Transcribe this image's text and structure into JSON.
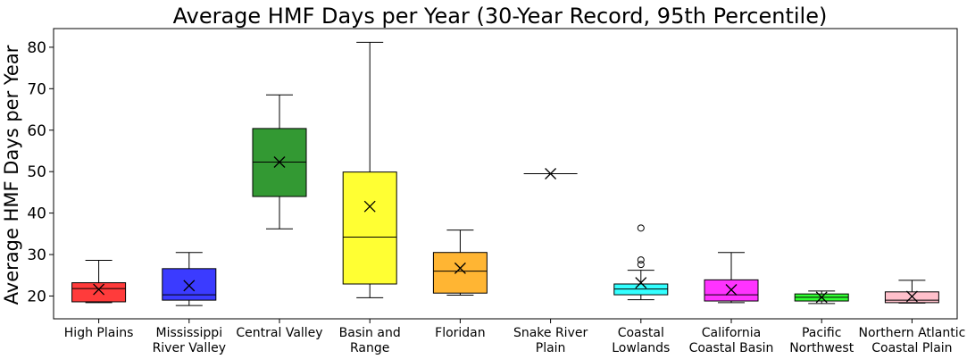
{
  "chart_data": {
    "type": "box",
    "title": "Average HMF Days per Year (30-Year Record, 95th Percentile)",
    "xlabel": "",
    "ylabel": "Average HMF Days per Year",
    "ylim": [
      14.5,
      84.5
    ],
    "yticks": [
      20,
      30,
      40,
      50,
      60,
      70,
      80
    ],
    "grid": false,
    "mean_marker": "x",
    "categories": [
      [
        "High Plains"
      ],
      [
        "Mississippi",
        "River Valley"
      ],
      [
        "Central Valley"
      ],
      [
        "Basin and",
        "Range"
      ],
      [
        "Floridan"
      ],
      [
        "Snake River",
        "Plain"
      ],
      [
        "Coastal",
        "Lowlands"
      ],
      [
        "California",
        "Coastal Basin"
      ],
      [
        "Pacific",
        "Northwest"
      ],
      [
        "Northern Atlantic",
        "Coastal Plain"
      ]
    ],
    "boxes": [
      {
        "color": "#ff3b3b",
        "whislo": 18.4,
        "q1": 18.6,
        "med": 21.8,
        "q3": 23.2,
        "whishi": 28.6,
        "mean": 21.6,
        "fliers": []
      },
      {
        "color": "#3b3bff",
        "whislo": 17.7,
        "q1": 19.0,
        "med": 20.3,
        "q3": 26.6,
        "whishi": 30.5,
        "mean": 22.5,
        "fliers": []
      },
      {
        "color": "#339933",
        "whislo": 36.2,
        "q1": 44.0,
        "med": 52.3,
        "q3": 60.4,
        "whishi": 68.5,
        "mean": 52.3,
        "fliers": []
      },
      {
        "color": "#ffff33",
        "whislo": 19.6,
        "q1": 22.9,
        "med": 34.2,
        "q3": 49.9,
        "whishi": 81.2,
        "mean": 41.6,
        "fliers": []
      },
      {
        "color": "#ffb533",
        "whislo": 20.2,
        "q1": 20.7,
        "med": 26.0,
        "q3": 30.5,
        "whishi": 35.9,
        "mean": 26.7,
        "fliers": []
      },
      {
        "color": "#888888",
        "whislo": 49.5,
        "q1": 49.5,
        "med": 49.5,
        "q3": 49.5,
        "whishi": 49.5,
        "mean": 49.5,
        "fliers": []
      },
      {
        "color": "#33ffff",
        "whislo": 19.1,
        "q1": 20.3,
        "med": 21.7,
        "q3": 22.9,
        "whishi": 26.2,
        "mean": 23.2,
        "fliers": [
          27.6,
          28.7,
          36.4
        ]
      },
      {
        "color": "#ff33ff",
        "whislo": 18.4,
        "q1": 18.8,
        "med": 20.3,
        "q3": 23.9,
        "whishi": 30.5,
        "mean": 21.5,
        "fliers": []
      },
      {
        "color": "#33ff33",
        "whislo": 18.2,
        "q1": 18.8,
        "med": 19.7,
        "q3": 20.5,
        "whishi": 21.2,
        "mean": 19.7,
        "fliers": []
      },
      {
        "color": "#ffc0cb",
        "whislo": 18.3,
        "q1": 18.4,
        "med": 19.0,
        "q3": 21.0,
        "whishi": 23.8,
        "mean": 19.9,
        "fliers": []
      }
    ]
  }
}
